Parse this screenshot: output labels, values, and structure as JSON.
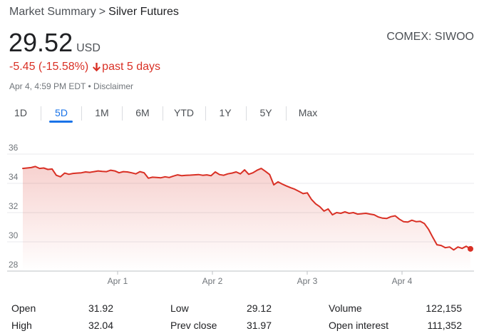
{
  "breadcrumb": {
    "parent": "Market Summary",
    "separator": ">",
    "current": "Silver Futures"
  },
  "quote": {
    "price": "29.52",
    "currency": "USD",
    "exchange": "COMEX: SIWOO",
    "change": "-5.45 (-15.58%)",
    "period": "past 5 days",
    "timestamp": "Apr 4, 4:59 PM EDT • Disclaimer"
  },
  "tabs": [
    {
      "label": "1D",
      "active": false
    },
    {
      "label": "5D",
      "active": true
    },
    {
      "label": "1M",
      "active": false
    },
    {
      "label": "6M",
      "active": false
    },
    {
      "label": "YTD",
      "active": false
    },
    {
      "label": "1Y",
      "active": false
    },
    {
      "label": "5Y",
      "active": false
    },
    {
      "label": "Max",
      "active": false
    }
  ],
  "colors": {
    "accent": "#1a73e8",
    "negative": "#d93025",
    "line": "#d93025",
    "gridline": "#e8eaed"
  },
  "chart_data": {
    "type": "area",
    "ylim": [
      28,
      36
    ],
    "yticks": [
      "36",
      "34",
      "32",
      "30",
      "28"
    ],
    "xticks": [
      "Apr 1",
      "Apr 2",
      "Apr 3",
      "Apr 4"
    ],
    "grid": true,
    "series": [
      {
        "values": [
          35.02,
          35.05,
          35.08,
          35.15,
          35.02,
          35.05,
          34.95,
          34.98,
          34.55,
          34.45,
          34.7,
          34.62,
          34.68,
          34.7,
          34.72,
          34.78,
          34.75,
          34.8,
          34.85,
          34.82,
          34.8,
          34.9,
          34.85,
          34.72,
          34.8,
          34.78,
          34.72,
          34.65,
          34.8,
          34.72,
          34.35,
          34.42,
          34.4,
          34.38,
          34.45,
          34.4,
          34.5,
          34.58,
          34.52,
          34.55,
          34.56,
          34.58,
          34.6,
          34.55,
          34.58,
          34.52,
          34.78,
          34.6,
          34.55,
          34.65,
          34.7,
          34.78,
          34.65,
          34.92,
          34.62,
          34.72,
          34.9,
          35.02,
          34.82,
          34.6,
          33.9,
          34.1,
          33.95,
          33.82,
          33.7,
          33.6,
          33.45,
          33.3,
          33.35,
          32.9,
          32.6,
          32.4,
          32.1,
          32.25,
          31.85,
          32.0,
          31.95,
          32.05,
          31.95,
          32.0,
          31.9,
          31.92,
          31.95,
          31.9,
          31.85,
          31.7,
          31.62,
          31.6,
          31.72,
          31.78,
          31.55,
          31.38,
          31.35,
          31.48,
          31.38,
          31.4,
          31.25,
          30.85,
          30.3,
          29.8,
          29.75,
          29.6,
          29.65,
          29.45,
          29.65,
          29.55,
          29.7,
          29.52
        ]
      }
    ]
  },
  "stats": [
    {
      "label": "Open",
      "value": "31.92"
    },
    {
      "label": "High",
      "value": "32.04"
    },
    {
      "label": "Low",
      "value": "29.12"
    },
    {
      "label": "Prev close",
      "value": "31.97"
    },
    {
      "label": "Volume",
      "value": "122,155"
    },
    {
      "label": "Open interest",
      "value": "111,352"
    }
  ]
}
